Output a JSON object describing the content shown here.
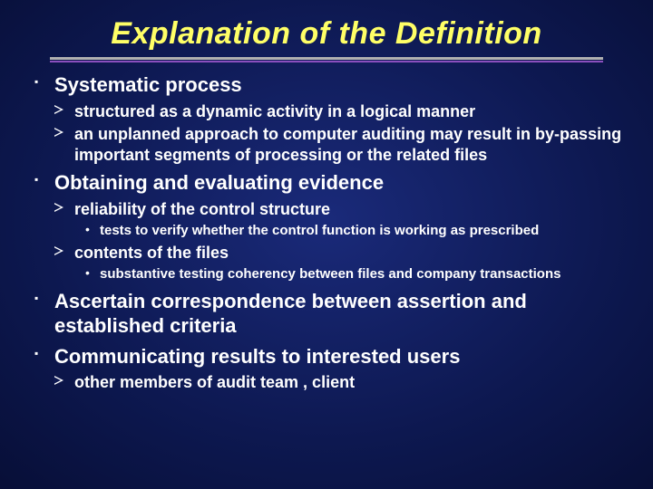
{
  "title": "Explanation of the Definition",
  "colors": {
    "title": "#ffff66",
    "text": "#ffffff",
    "rule_top": "#b0b0b0",
    "rule_bottom": "#8a4fbd",
    "bg_center": "#1a2a7a",
    "bg_edge": "#000010"
  },
  "typography": {
    "title_fontsize": 34,
    "title_style": "bold italic",
    "lvl1_fontsize": 22,
    "lvl2_fontsize": 18,
    "lvl3_fontsize": 15,
    "font_family": "Arial"
  },
  "items": [
    {
      "text": "Systematic process",
      "sub": [
        {
          "text": "structured as a dynamic activity in a logical manner"
        },
        {
          "text": "an unplanned approach to computer auditing may result in by-passing important segments of processing or the related files"
        }
      ]
    },
    {
      "text": "Obtaining and evaluating evidence",
      "sub": [
        {
          "text": "reliability of the control structure",
          "sub": [
            {
              "text": "tests  to verify whether the control function is working as prescribed"
            }
          ]
        },
        {
          "text": "contents of the files",
          "sub": [
            {
              "text": "substantive testing coherency between files and company transactions"
            }
          ]
        }
      ]
    },
    {
      "text": "Ascertain correspondence between assertion and established criteria"
    },
    {
      "text": "Communicating results to interested users",
      "sub": [
        {
          "text": "other members of audit team , client"
        }
      ]
    }
  ]
}
